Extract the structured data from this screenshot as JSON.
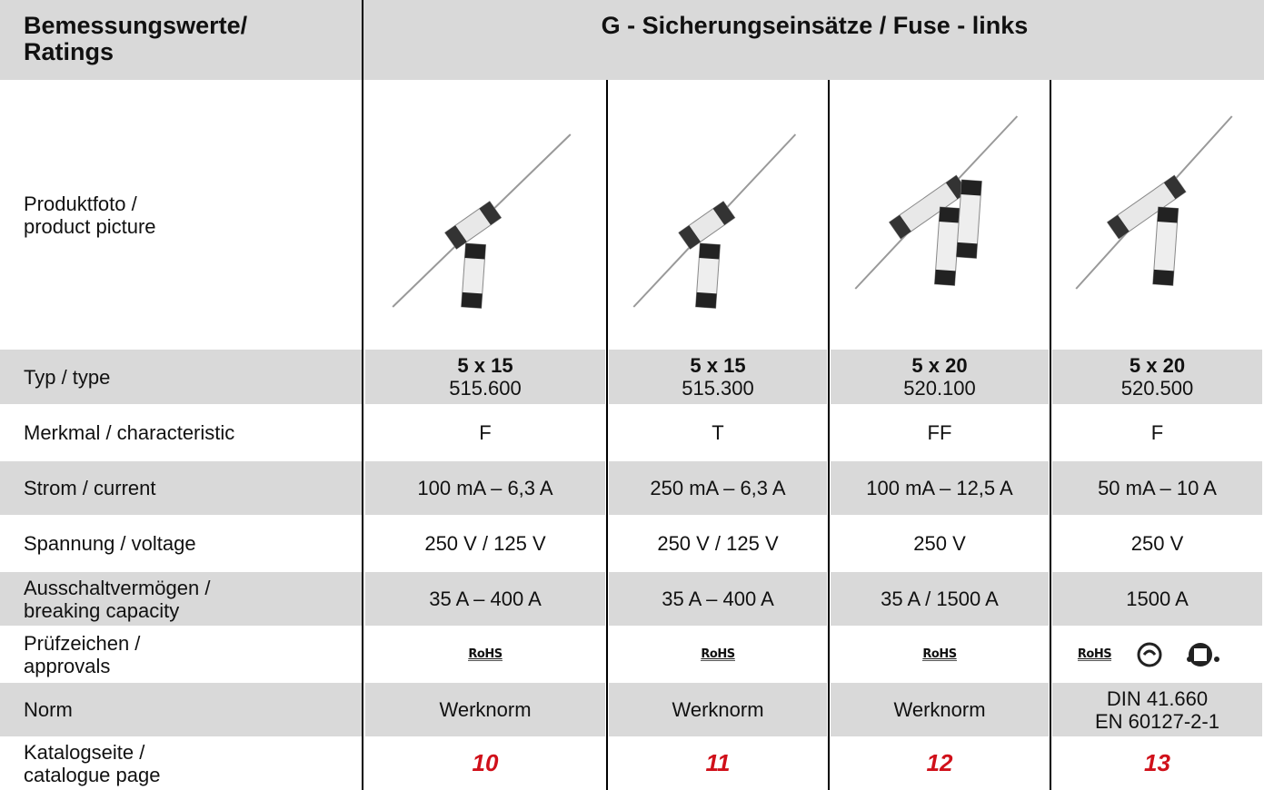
{
  "header": {
    "left": [
      "Bemessungswerte/",
      "Ratings"
    ],
    "right": "G - Sicherungseinsätze / Fuse - links"
  },
  "picture_label": [
    "Produktfoto /",
    "product picture"
  ],
  "rows": [
    {
      "label": [
        "Typ / type"
      ],
      "cells": [
        [
          "5 x 15",
          "515.600"
        ],
        [
          "5 x 15",
          "515.300"
        ],
        [
          "5 x 20",
          "520.100"
        ],
        [
          "5 x 20",
          "520.500"
        ]
      ]
    },
    {
      "label": [
        "Merkmal / characteristic"
      ],
      "cells": [
        [
          "F"
        ],
        [
          "T"
        ],
        [
          "FF"
        ],
        [
          "F"
        ]
      ]
    },
    {
      "label": [
        "Strom / current"
      ],
      "cells": [
        [
          "100 mA – 6,3 A"
        ],
        [
          "250 mA – 6,3 A"
        ],
        [
          "100 mA – 12,5 A"
        ],
        [
          "50 mA – 10 A"
        ]
      ]
    },
    {
      "label": [
        "Spannung / voltage"
      ],
      "cells": [
        [
          "250 V / 125 V"
        ],
        [
          "250 V / 125 V"
        ],
        [
          "250 V"
        ],
        [
          "250 V"
        ]
      ]
    },
    {
      "label": [
        "Ausschaltvermögen /",
        "breaking capacity"
      ],
      "cells": [
        [
          "35 A – 400 A"
        ],
        [
          "35 A – 400 A"
        ],
        [
          "35 A / 1500 A"
        ],
        [
          "1500 A"
        ]
      ]
    },
    {
      "label": [
        "Prüfzeichen /",
        "approvals"
      ],
      "cells": [
        [
          "RoHS"
        ],
        [
          "RoHS"
        ],
        [
          "RoHS"
        ],
        [
          "RoHS"
        ]
      ]
    },
    {
      "label": [
        "Norm"
      ],
      "cells": [
        [
          "Werknorm"
        ],
        [
          "Werknorm"
        ],
        [
          "Werknorm"
        ],
        [
          "DIN 41.660",
          "EN 60127-2-1"
        ]
      ]
    },
    {
      "label": [
        "Katalogseite /",
        "catalogue page"
      ],
      "cells": [
        [
          "10"
        ],
        [
          "11"
        ],
        [
          "12"
        ],
        [
          "13"
        ]
      ]
    }
  ]
}
